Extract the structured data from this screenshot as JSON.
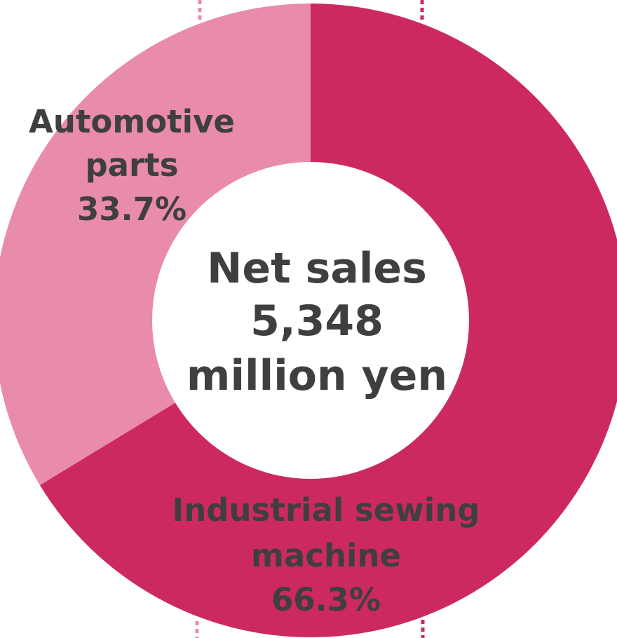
{
  "chart_data": {
    "type": "pie",
    "variant": "donut",
    "title": "",
    "center_text": [
      "Net sales",
      "5,348",
      "million yen"
    ],
    "series": [
      {
        "values": [
          66.3,
          33.7
        ]
      }
    ],
    "categories": [
      "Industrial sewing machine",
      "Automotive parts"
    ],
    "slices": [
      {
        "name": "Industrial sewing machine",
        "value": 66.3,
        "label_lines": [
          "Industrial sewing",
          "machine",
          "66.3%"
        ],
        "color": "#cc2a5e"
      },
      {
        "name": "Automotive parts",
        "value": 33.7,
        "label_lines": [
          "Automotive",
          "parts",
          "33.7%"
        ],
        "color": "#e98ca9"
      }
    ],
    "legend": "none",
    "grid": false
  },
  "colors": {
    "text": "#3f3f3f",
    "background": "#ffffff",
    "hole": "#ffffff"
  }
}
